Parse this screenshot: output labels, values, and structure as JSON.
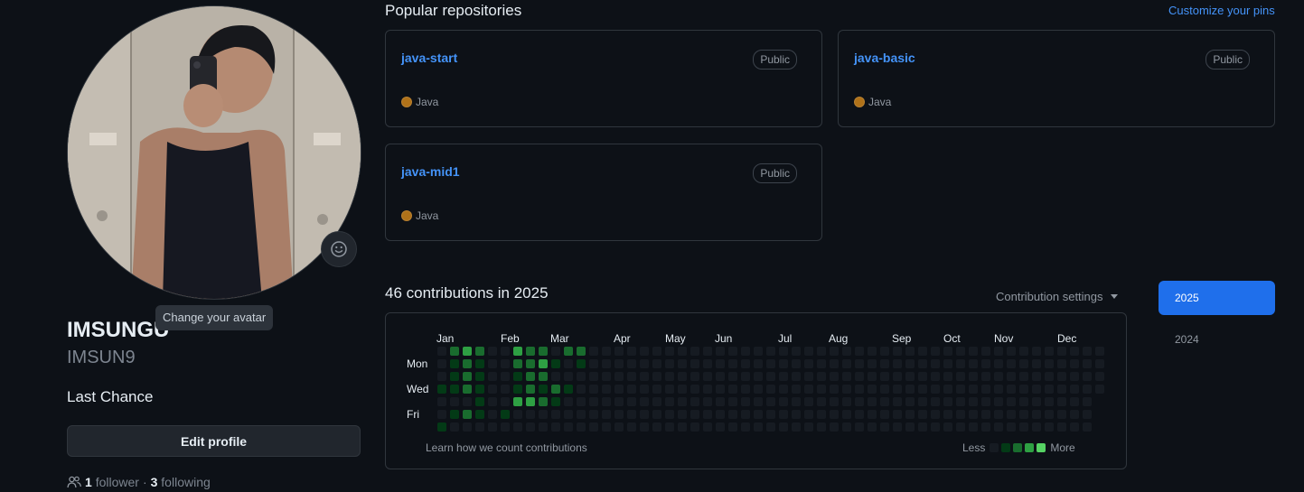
{
  "profile": {
    "avatar_tooltip": "Change your avatar",
    "name": "IMSUNGU",
    "login": "IMSUN9",
    "bio": "Last Chance",
    "edit_button": "Edit profile",
    "followers_count": "1",
    "followers_label": "follower",
    "separator": "·",
    "following_count": "3",
    "following_label": "following"
  },
  "pinned": {
    "title": "Popular repositories",
    "customize_link": "Customize your pins",
    "repos": [
      {
        "name": "java-start",
        "visibility": "Public",
        "language": "Java",
        "language_color": "#b07219"
      },
      {
        "name": "java-basic",
        "visibility": "Public",
        "language": "Java",
        "language_color": "#b07219"
      },
      {
        "name": "java-mid1",
        "visibility": "Public",
        "language": "Java",
        "language_color": "#b07219"
      }
    ]
  },
  "contributions": {
    "title": "46 contributions in 2025",
    "settings_label": "Contribution settings",
    "months": [
      "Jan",
      "Feb",
      "Mar",
      "Apr",
      "May",
      "Jun",
      "Jul",
      "Aug",
      "Sep",
      "Oct",
      "Nov",
      "Dec"
    ],
    "day_labels": [
      "Mon",
      "Wed",
      "Fri"
    ],
    "learn_link": "Learn how we count contributions",
    "legend_less": "Less",
    "legend_more": "More",
    "level_colors": [
      "#161b22",
      "#033a16",
      "#196c2e",
      "#2ea043",
      "#56d364"
    ],
    "weeks_with_activity": [
      [
        0,
        0,
        0,
        1,
        0,
        0,
        1
      ],
      [
        2,
        1,
        1,
        1,
        0,
        1,
        0
      ],
      [
        3,
        2,
        2,
        2,
        0,
        2,
        0
      ],
      [
        2,
        1,
        1,
        1,
        1,
        1,
        0
      ],
      [
        0,
        0,
        0,
        0,
        0,
        0,
        0
      ],
      [
        0,
        0,
        0,
        0,
        0,
        1,
        0
      ],
      [
        3,
        2,
        1,
        1,
        3,
        0,
        0
      ],
      [
        2,
        2,
        2,
        2,
        3,
        0,
        0
      ],
      [
        2,
        3,
        2,
        1,
        2,
        0,
        0
      ],
      [
        0,
        1,
        0,
        2,
        1,
        0,
        0
      ],
      [
        2,
        0,
        0,
        1,
        0,
        0,
        0
      ],
      [
        2,
        1,
        0,
        0,
        0,
        0,
        0
      ]
    ],
    "total_weeks": 53,
    "years": [
      "2025",
      "2024"
    ],
    "selected_year": "2025"
  },
  "icons": {
    "emoji": "smiley-icon",
    "people": "people-icon",
    "caret": "triangle-down-icon"
  }
}
